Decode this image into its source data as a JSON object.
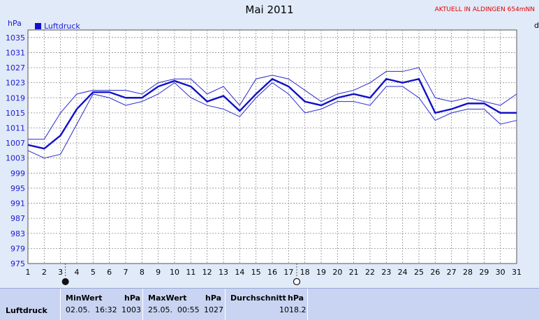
{
  "header": {
    "title": "Mai 2011",
    "banner": "AKTUELL IN ALDINGEN 654mNN",
    "unit_left": "hPa",
    "unit_right": "d",
    "legend": "Luftdruck"
  },
  "chart_data": {
    "type": "line",
    "x": [
      1,
      2,
      3,
      4,
      5,
      6,
      7,
      8,
      9,
      10,
      11,
      12,
      13,
      14,
      15,
      16,
      17,
      18,
      19,
      20,
      21,
      22,
      23,
      24,
      25,
      26,
      27,
      28,
      29,
      30,
      31
    ],
    "ylim": [
      975,
      1037
    ],
    "yticks": [
      975,
      979,
      983,
      987,
      991,
      995,
      999,
      1003,
      1007,
      1011,
      1015,
      1019,
      1023,
      1027,
      1031,
      1035
    ],
    "xticks": [
      "1",
      "2",
      "3",
      "4",
      "5",
      "6",
      "7",
      "8",
      "9",
      "10",
      "11",
      "12",
      "13",
      "14",
      "15",
      "16",
      "17",
      "18",
      "19",
      "20",
      "21",
      "22",
      "23",
      "24",
      "25",
      "26",
      "27",
      "28",
      "29",
      "30",
      "31"
    ],
    "grid": true,
    "legend_position": "top-left",
    "series": [
      {
        "name": "Luftdruck",
        "role": "mean",
        "values": [
          1006.5,
          1005.5,
          1009,
          1016,
          1020.5,
          1020.5,
          1019,
          1019,
          1022,
          1023.5,
          1022,
          1018,
          1019.5,
          1015.5,
          1020,
          1024,
          1022,
          1018,
          1017,
          1019,
          1020,
          1019,
          1024,
          1023,
          1024,
          1015,
          1016,
          1017.5,
          1017.5,
          1015,
          1015
        ]
      },
      {
        "name": "Max",
        "role": "upper",
        "values": [
          1008,
          1008,
          1015,
          1020,
          1021,
          1021,
          1021,
          1020,
          1023,
          1024,
          1024,
          1020,
          1022,
          1017,
          1024,
          1025,
          1024,
          1021,
          1018,
          1020,
          1021,
          1023,
          1026,
          1026,
          1027,
          1019,
          1018,
          1019,
          1018,
          1017,
          1020
        ]
      },
      {
        "name": "Min",
        "role": "lower",
        "values": [
          1005,
          1003,
          1004,
          1012,
          1020,
          1019,
          1017,
          1018,
          1020,
          1023,
          1019,
          1017,
          1016,
          1014,
          1019,
          1023,
          1020,
          1015,
          1016,
          1018,
          1018,
          1017,
          1022,
          1022,
          1019,
          1013,
          1015,
          1016,
          1016,
          1012,
          1013
        ]
      }
    ],
    "moon_markers": [
      {
        "day": 3.3,
        "phase": "new-moon"
      },
      {
        "day": 17.5,
        "phase": "full-moon"
      }
    ]
  },
  "stats": {
    "row_label": "Luftdruck",
    "min": {
      "label": "MinWert",
      "unit": "hPa",
      "time": "02.05.  16:32",
      "value": "1003"
    },
    "max": {
      "label": "MaxWert",
      "unit": "hPa",
      "time": "25.05.  00:55",
      "value": "1027"
    },
    "avg": {
      "label": "Durchschnitt",
      "unit": "hPa",
      "value": "1018.2"
    }
  },
  "colors": {
    "mean": "#1010c8",
    "band": "#2a2ad0",
    "grid": "#8c8c8c",
    "bg": "#ffffff"
  }
}
